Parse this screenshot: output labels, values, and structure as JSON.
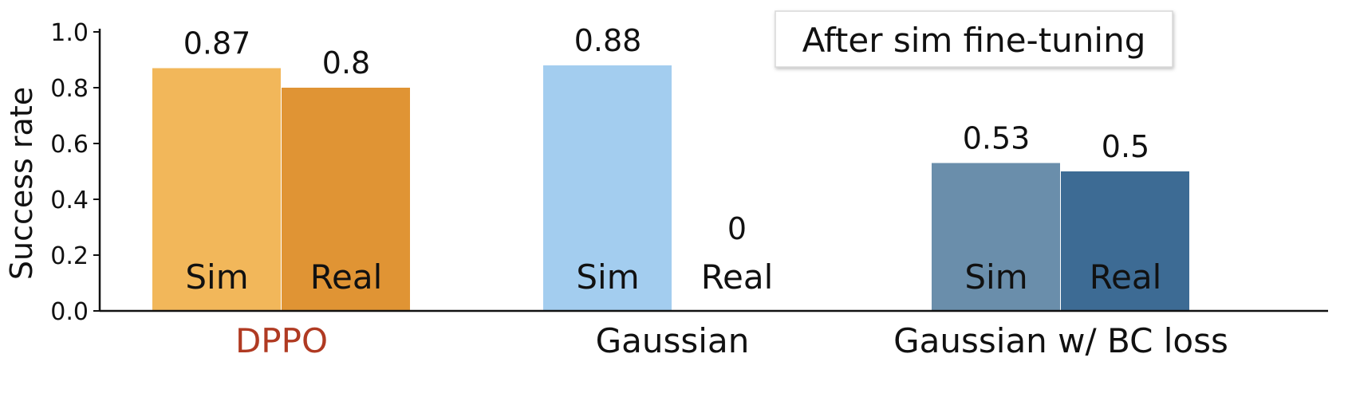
{
  "chart_data": {
    "type": "bar",
    "title": "",
    "annotation": "After sim fine-tuning",
    "xlabel": "",
    "ylabel": "Success rate",
    "ylim": [
      0,
      1.0
    ],
    "yticks": [
      "0.0",
      "0.2",
      "0.4",
      "0.6",
      "0.8",
      "1.0"
    ],
    "grid": false,
    "groups": [
      {
        "label": "DPPO",
        "label_color": "#B03A22",
        "bars": [
          {
            "label": "Sim",
            "value": 0.87,
            "value_label": "0.87",
            "color": "#F2B75A"
          },
          {
            "label": "Real",
            "value": 0.8,
            "value_label": "0.8",
            "color": "#E09434"
          }
        ]
      },
      {
        "label": "Gaussian",
        "label_color": "#111111",
        "bars": [
          {
            "label": "Sim",
            "value": 0.88,
            "value_label": "0.88",
            "color": "#A3CDEF"
          },
          {
            "label": "Real",
            "value": 0,
            "value_label": "0",
            "color": "#A3CDEF"
          }
        ]
      },
      {
        "label": "Gaussian w/ BC loss",
        "label_color": "#111111",
        "bars": [
          {
            "label": "Sim",
            "value": 0.53,
            "value_label": "0.53",
            "color": "#6A8EAB"
          },
          {
            "label": "Real",
            "value": 0.5,
            "value_label": "0.5",
            "color": "#3D6B94"
          }
        ]
      }
    ]
  }
}
